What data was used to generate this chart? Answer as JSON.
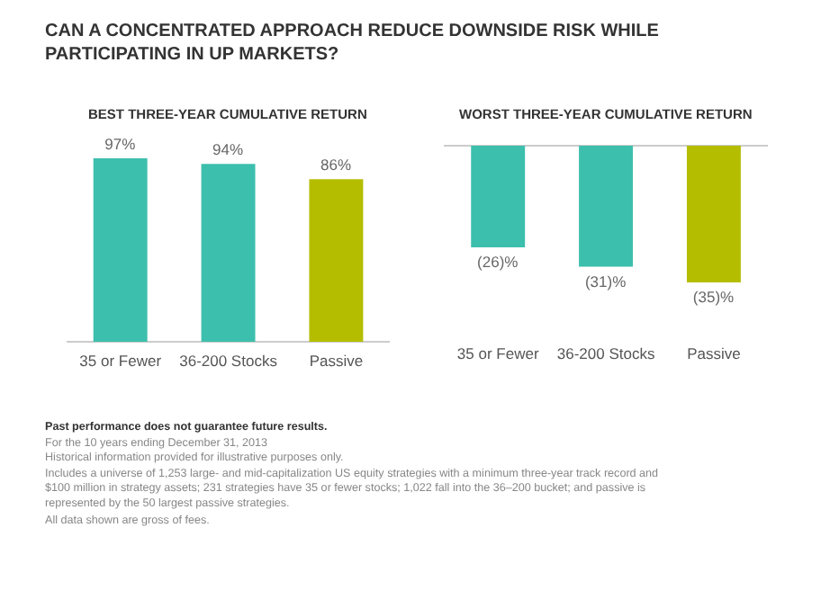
{
  "chart_data": [
    {
      "type": "bar",
      "title": "BEST THREE-YEAR CUMULATIVE RETURN",
      "categories": [
        "35 or Fewer",
        "36-200 Stocks",
        "Passive"
      ],
      "values": [
        97,
        94,
        86
      ],
      "value_labels": [
        "97%",
        "94%",
        "86%"
      ],
      "colors": [
        "#3dbfad",
        "#3dbfad",
        "#b5bd00"
      ],
      "tick_labels": "x",
      "annotations": [
        "CAN A CONCENTRATED APPROACH REDUCE DOWNSIDE RISK WHILE PARTICIPATING IN UP MARKETS?",
        "Past performance does not guarantee future results.",
        "For the 10 years ending December 31, 2013",
        "Historical information provided for illustrative purposes only.",
        "Includes a universe of 1,253 large- and mid-capitalization US equity strategies with a minimum three-year track record and $100 million in strategy assets; 231 strategies have 35 or fewer stocks; 1,022 fall into the 36–200 bucket; and passive is represented by the 50 largest passive strategies.",
        "All data shown are gross of fees."
      ]
    },
    {
      "type": "bar",
      "title": "WORST THREE-YEAR CUMULATIVE RETURN",
      "categories": [
        "35 or Fewer",
        "36-200 Stocks",
        "Passive"
      ],
      "values": [
        -26,
        -31,
        -35
      ],
      "value_labels": [
        "(26)%",
        "(31)%",
        "(35)%"
      ],
      "colors": [
        "#3dbfad",
        "#3dbfad",
        "#b5bd00"
      ],
      "tick_labels": "x"
    }
  ]
}
